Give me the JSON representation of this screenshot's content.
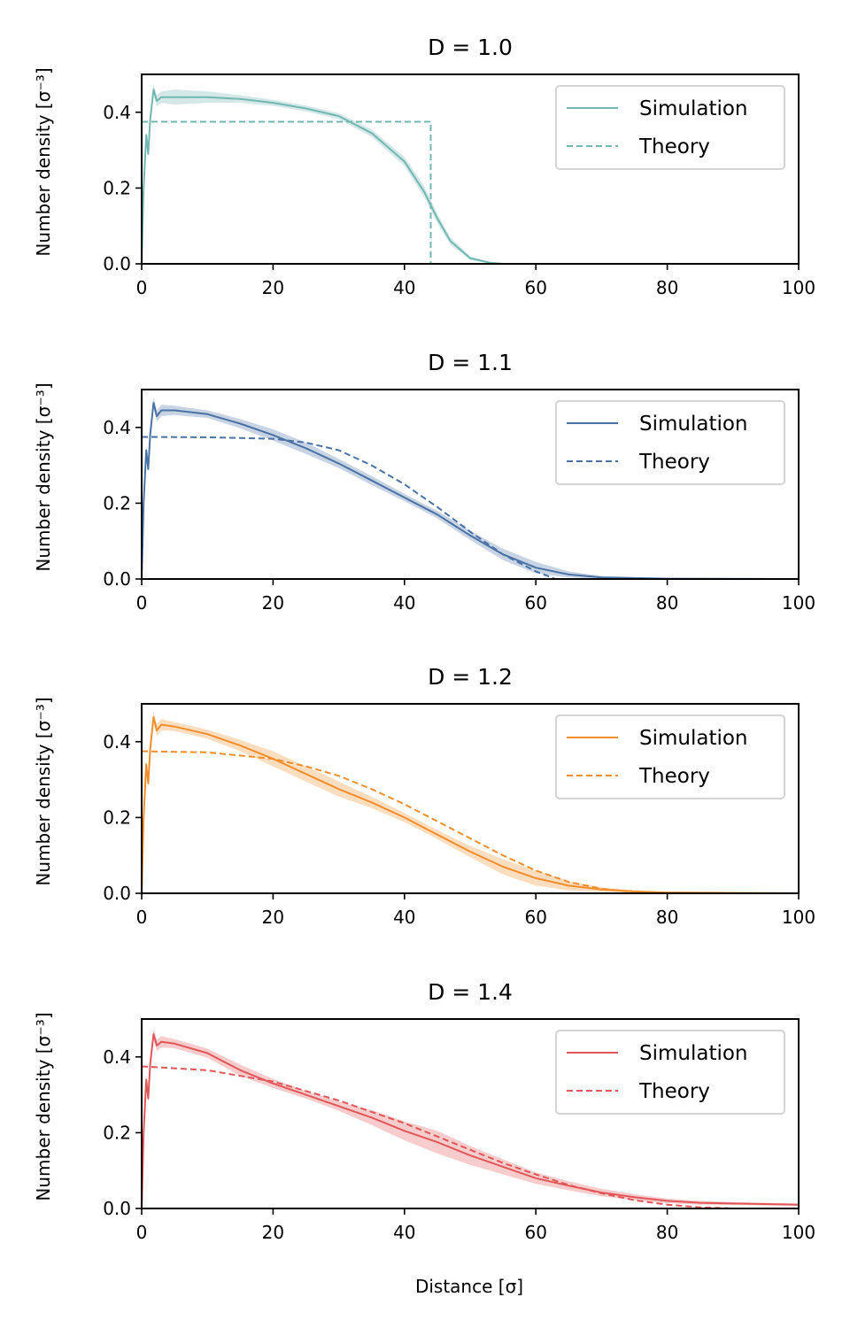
{
  "figure": {
    "xlabel": "Distance [σ]",
    "ylabel": "Number density [σ⁻³]"
  },
  "chart_data": [
    {
      "type": "line",
      "title": "D = 1.0",
      "color": "#72b7b0",
      "xlim": [
        0,
        100
      ],
      "ylim": [
        0,
        0.5
      ],
      "xticks": [
        0,
        20,
        40,
        60,
        80,
        100
      ],
      "xtick_labels": [
        "0",
        "20",
        "40",
        "60",
        "80",
        "100"
      ],
      "yticks": [
        0,
        0.2,
        0.4
      ],
      "ytick_labels": [
        "0.0",
        "0.2",
        "0.4"
      ],
      "legend": {
        "position": "top-right",
        "entries": [
          "Simulation",
          "Theory"
        ]
      },
      "series": [
        {
          "name": "Simulation",
          "style": "solid",
          "x": [
            0,
            0.3,
            0.7,
            1.0,
            1.3,
            1.8,
            2.3,
            3,
            5,
            10,
            15,
            20,
            25,
            30,
            35,
            40,
            43,
            45,
            47,
            50,
            53,
            55,
            60,
            100
          ],
          "y": [
            0,
            0.2,
            0.34,
            0.29,
            0.38,
            0.46,
            0.43,
            0.44,
            0.44,
            0.44,
            0.435,
            0.425,
            0.41,
            0.39,
            0.345,
            0.27,
            0.19,
            0.12,
            0.06,
            0.015,
            0.003,
            0,
            0,
            0
          ],
          "band_width": [
            0,
            0.01,
            0.01,
            0.01,
            0.01,
            0.015,
            0.015,
            0.015,
            0.02,
            0.015,
            0.01,
            0.008,
            0.008,
            0.008,
            0.01,
            0.012,
            0.015,
            0.012,
            0.01,
            0.005,
            0.002,
            0,
            0,
            0
          ]
        },
        {
          "name": "Theory",
          "style": "dashed",
          "x": [
            0,
            44,
            44,
            100
          ],
          "y": [
            0.375,
            0.375,
            0,
            0
          ]
        }
      ]
    },
    {
      "type": "line",
      "title": "D = 1.1",
      "color": "#4a72a4",
      "xlim": [
        0,
        100
      ],
      "ylim": [
        0,
        0.5
      ],
      "xticks": [
        0,
        20,
        40,
        60,
        80,
        100
      ],
      "xtick_labels": [
        "0",
        "20",
        "40",
        "60",
        "80",
        "100"
      ],
      "yticks": [
        0,
        0.2,
        0.4
      ],
      "ytick_labels": [
        "0.0",
        "0.2",
        "0.4"
      ],
      "legend": {
        "position": "top-right",
        "entries": [
          "Simulation",
          "Theory"
        ]
      },
      "series": [
        {
          "name": "Simulation",
          "style": "solid",
          "x": [
            0,
            0.3,
            0.7,
            1.0,
            1.3,
            1.8,
            2.3,
            3,
            5,
            10,
            15,
            20,
            25,
            30,
            35,
            40,
            45,
            50,
            55,
            60,
            65,
            70,
            80,
            100
          ],
          "y": [
            0,
            0.2,
            0.34,
            0.29,
            0.38,
            0.465,
            0.43,
            0.445,
            0.445,
            0.435,
            0.41,
            0.38,
            0.345,
            0.305,
            0.26,
            0.215,
            0.17,
            0.115,
            0.065,
            0.03,
            0.012,
            0.004,
            0.001,
            0
          ],
          "band_width": [
            0,
            0.01,
            0.01,
            0.01,
            0.01,
            0.015,
            0.015,
            0.015,
            0.012,
            0.01,
            0.012,
            0.015,
            0.015,
            0.012,
            0.012,
            0.01,
            0.01,
            0.012,
            0.015,
            0.015,
            0.008,
            0.004,
            0.001,
            0
          ]
        },
        {
          "name": "Theory",
          "style": "dashed",
          "x": [
            0,
            10,
            20,
            25,
            30,
            35,
            40,
            45,
            50,
            55,
            60,
            63
          ],
          "y": [
            0.375,
            0.374,
            0.37,
            0.36,
            0.34,
            0.3,
            0.25,
            0.19,
            0.125,
            0.065,
            0.02,
            0
          ]
        }
      ]
    },
    {
      "type": "line",
      "title": "D = 1.2",
      "color": "#f28e2b",
      "xlim": [
        0,
        100
      ],
      "ylim": [
        0,
        0.5
      ],
      "xticks": [
        0,
        20,
        40,
        60,
        80,
        100
      ],
      "xtick_labels": [
        "0",
        "20",
        "40",
        "60",
        "80",
        "100"
      ],
      "yticks": [
        0,
        0.2,
        0.4
      ],
      "ytick_labels": [
        "0.0",
        "0.2",
        "0.4"
      ],
      "legend": {
        "position": "top-right",
        "entries": [
          "Simulation",
          "Theory"
        ]
      },
      "series": [
        {
          "name": "Simulation",
          "style": "solid",
          "x": [
            0,
            0.3,
            0.7,
            1.0,
            1.3,
            1.8,
            2.3,
            3,
            5,
            10,
            15,
            20,
            25,
            30,
            35,
            40,
            45,
            50,
            55,
            60,
            65,
            70,
            75,
            80,
            90,
            100
          ],
          "y": [
            0,
            0.2,
            0.34,
            0.29,
            0.38,
            0.465,
            0.43,
            0.445,
            0.44,
            0.42,
            0.39,
            0.355,
            0.315,
            0.275,
            0.24,
            0.2,
            0.155,
            0.11,
            0.07,
            0.04,
            0.02,
            0.01,
            0.005,
            0.002,
            0.001,
            0
          ],
          "band_width": [
            0,
            0.01,
            0.01,
            0.01,
            0.01,
            0.015,
            0.015,
            0.015,
            0.012,
            0.012,
            0.015,
            0.02,
            0.02,
            0.02,
            0.015,
            0.012,
            0.012,
            0.015,
            0.02,
            0.02,
            0.012,
            0.006,
            0.003,
            0.001,
            0,
            0
          ]
        },
        {
          "name": "Theory",
          "style": "dashed",
          "x": [
            0,
            10,
            20,
            25,
            30,
            35,
            40,
            45,
            50,
            55,
            60,
            65,
            70,
            75,
            80
          ],
          "y": [
            0.375,
            0.372,
            0.355,
            0.335,
            0.31,
            0.275,
            0.235,
            0.19,
            0.145,
            0.1,
            0.06,
            0.03,
            0.012,
            0.003,
            0
          ]
        }
      ]
    },
    {
      "type": "line",
      "title": "D = 1.4",
      "color": "#e15759",
      "xlim": [
        0,
        100
      ],
      "ylim": [
        0,
        0.5
      ],
      "xticks": [
        0,
        20,
        40,
        60,
        80,
        100
      ],
      "xtick_labels": [
        "0",
        "20",
        "40",
        "60",
        "80",
        "100"
      ],
      "yticks": [
        0,
        0.2,
        0.4
      ],
      "ytick_labels": [
        "0.0",
        "0.2",
        "0.4"
      ],
      "legend": {
        "position": "top-right",
        "entries": [
          "Simulation",
          "Theory"
        ]
      },
      "series": [
        {
          "name": "Simulation",
          "style": "solid",
          "x": [
            0,
            0.3,
            0.7,
            1.0,
            1.3,
            1.8,
            2.3,
            3,
            5,
            10,
            15,
            20,
            25,
            30,
            35,
            40,
            45,
            50,
            55,
            60,
            65,
            70,
            75,
            80,
            85,
            90,
            100
          ],
          "y": [
            0,
            0.2,
            0.34,
            0.29,
            0.38,
            0.46,
            0.43,
            0.44,
            0.435,
            0.41,
            0.365,
            0.33,
            0.3,
            0.27,
            0.24,
            0.205,
            0.175,
            0.14,
            0.11,
            0.08,
            0.06,
            0.042,
            0.03,
            0.02,
            0.015,
            0.013,
            0.01
          ],
          "band_width": [
            0,
            0.01,
            0.01,
            0.01,
            0.01,
            0.015,
            0.015,
            0.015,
            0.012,
            0.012,
            0.015,
            0.012,
            0.01,
            0.012,
            0.02,
            0.025,
            0.03,
            0.025,
            0.02,
            0.015,
            0.012,
            0.01,
            0.008,
            0.006,
            0.005,
            0.004,
            0.003
          ]
        },
        {
          "name": "Theory",
          "style": "dashed",
          "x": [
            0,
            10,
            20,
            25,
            30,
            35,
            40,
            45,
            50,
            55,
            60,
            65,
            70,
            75,
            80,
            85,
            90
          ],
          "y": [
            0.375,
            0.365,
            0.335,
            0.31,
            0.285,
            0.255,
            0.225,
            0.19,
            0.155,
            0.12,
            0.09,
            0.062,
            0.04,
            0.022,
            0.01,
            0.003,
            0
          ]
        }
      ]
    }
  ]
}
